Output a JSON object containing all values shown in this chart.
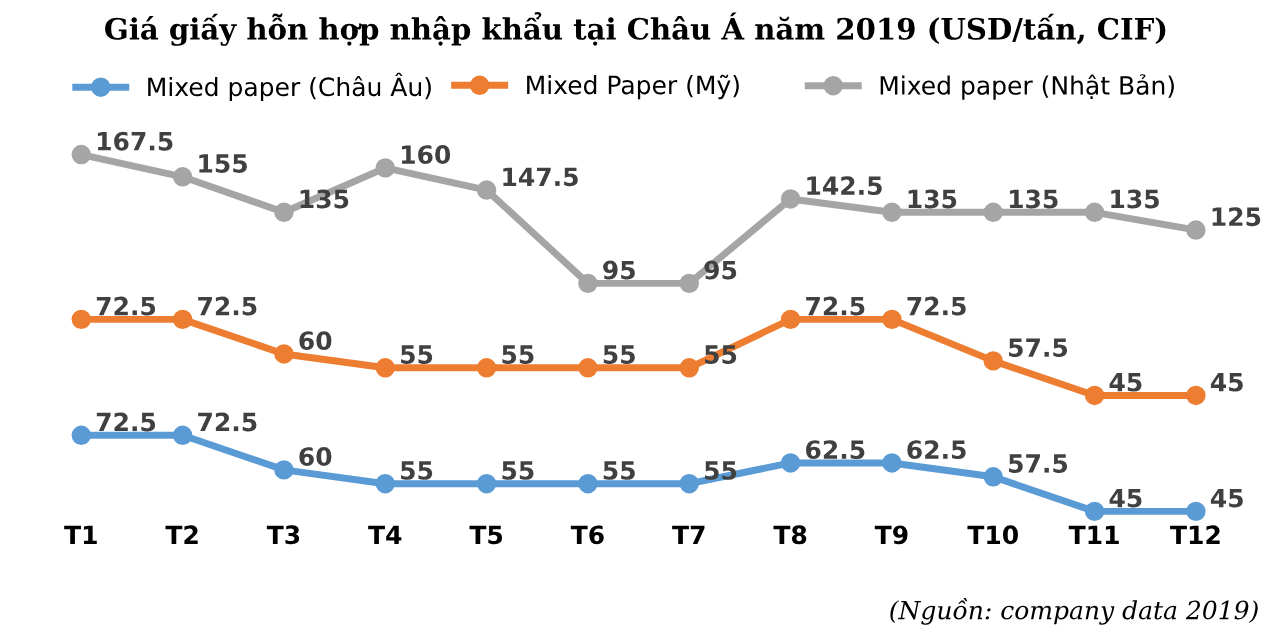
{
  "chart_data": [
    {
      "type": "line",
      "title": "Giá giấy hỗn hợp nhập khẩu tại Châu Á năm 2019 (USD/tấn, CIF)",
      "categories": [
        null,
        null,
        null,
        null,
        null,
        null,
        null,
        null,
        null,
        null,
        null,
        null
      ],
      "data_labels": true,
      "legend": "top right",
      "marker": "circle",
      "tick_labels": false,
      "series": [
        {
          "name": "Mixed paper (Nhật Bản)",
          "color": "#a5a5a5",
          "values": [
            167.5,
            155,
            135,
            160,
            147.5,
            95,
            95,
            142.5,
            135,
            135,
            135,
            125
          ]
        }
      ]
    },
    {
      "type": "line",
      "categories": [
        null,
        null,
        null,
        null,
        null,
        null,
        null,
        null,
        null,
        null,
        null,
        null
      ],
      "data_labels": true,
      "legend": "top",
      "marker": "circle",
      "tick_labels": false,
      "series": [
        {
          "name": "Mixed Paper (Mỹ)",
          "color": "#ed7d31",
          "values": [
            72.5,
            72.5,
            60,
            55,
            55,
            55,
            55,
            72.5,
            72.5,
            57.5,
            45,
            45
          ]
        }
      ]
    },
    {
      "type": "line",
      "categories": [
        "T1",
        "T2",
        "T3",
        "T4",
        "T5",
        "T6",
        "T7",
        "T8",
        "T9",
        "T10",
        "T11",
        "T12"
      ],
      "data_labels": true,
      "legend": "top left",
      "marker": "circle",
      "tick_labels": "x",
      "series": [
        {
          "name": "Mixed paper (Châu Âu)",
          "color": "#5b9bd5",
          "values": [
            72.5,
            72.5,
            60,
            55,
            55,
            55,
            55,
            62.5,
            62.5,
            57.5,
            45,
            45
          ]
        }
      ],
      "annotations": [
        "(Nguồn: company data 2019)"
      ]
    }
  ]
}
